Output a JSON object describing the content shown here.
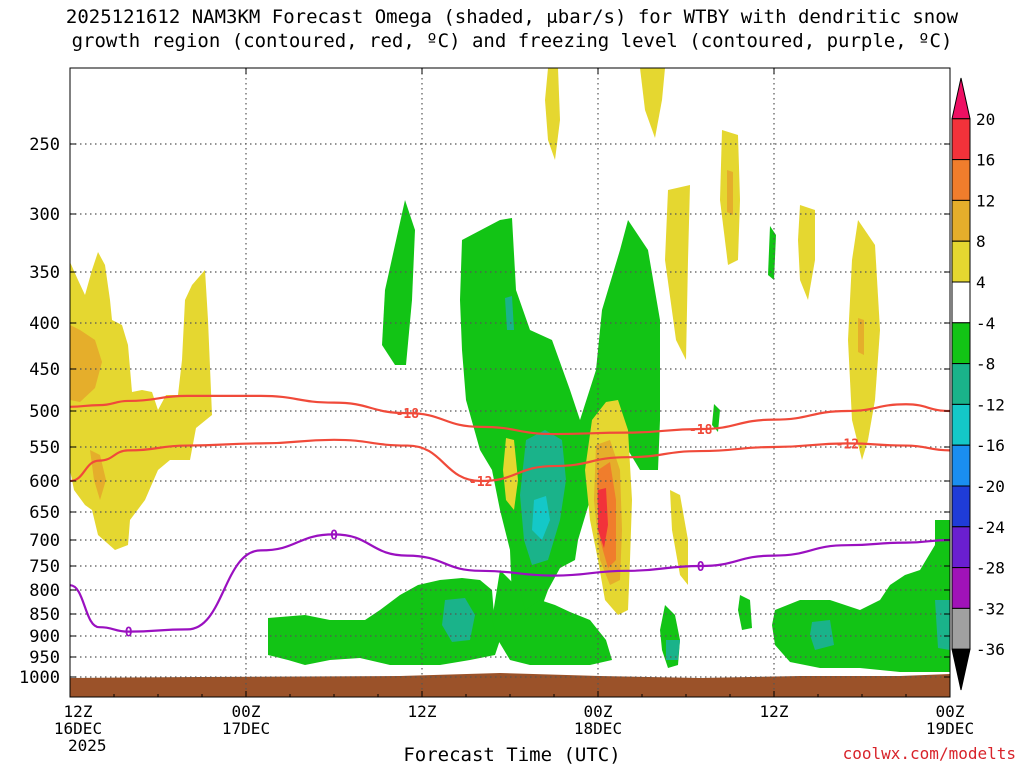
{
  "chart_data": {
    "type": "heatmap",
    "title_line1": "2025121612 NAM3KM Forecast Omega (shaded, μbar/s) for WTBY with dendritic snow",
    "title_line2": "growth region (contoured, red, ºC) and freezing level (contoured, purple, ºC)",
    "xlabel": "Forecast Time (UTC)",
    "ylabel": "",
    "credit": "coolwx.com/modelts",
    "yaxis_ticks": [
      250,
      300,
      350,
      400,
      450,
      500,
      550,
      600,
      650,
      700,
      750,
      800,
      850,
      900,
      950,
      1000
    ],
    "ylim_hpa": [
      1030,
      200
    ],
    "xaxis_ticks": [
      {
        "hour": 0,
        "line1": "12Z",
        "line2": "16DEC",
        "line3": "2025"
      },
      {
        "hour": 12,
        "line1": "00Z",
        "line2": "17DEC",
        "line3": ""
      },
      {
        "hour": 24,
        "line1": "12Z",
        "line2": "",
        "line3": ""
      },
      {
        "hour": 36,
        "line1": "00Z",
        "line2": "18DEC",
        "line3": ""
      },
      {
        "hour": 48,
        "line1": "12Z",
        "line2": "",
        "line3": ""
      },
      {
        "hour": 60,
        "line1": "00Z",
        "line2": "19DEC",
        "line3": ""
      }
    ],
    "xlim_hours": [
      0,
      60
    ],
    "colorbar": {
      "labels": [
        "20",
        "16",
        "12",
        "8",
        "4",
        "-4",
        "-8",
        "-12",
        "-16",
        "-20",
        "-24",
        "-28",
        "-32",
        "-36"
      ],
      "colors": [
        "#ee1063",
        "#f2323a",
        "#f07d2c",
        "#e5ae2b",
        "#e5d730",
        "#ffffff",
        "#12c415",
        "#1ab38a",
        "#14c8c8",
        "#1a8ef0",
        "#1f3cd8",
        "#6a1fd0",
        "#a012b8",
        "#a0a0a0",
        "#000000"
      ]
    },
    "contours": {
      "dgz_minus12": {
        "label": "-12",
        "color": "#f04a3a",
        "pressure_hpa": [
          600,
          570,
          555,
          548,
          545,
          540,
          548,
          600,
          578,
          565,
          556,
          550,
          545,
          548,
          555
        ]
      },
      "dgz_minus18": {
        "label": "-18",
        "color": "#f04a3a",
        "pressure_hpa": [
          495,
          493,
          488,
          482,
          482,
          490,
          503,
          522,
          532,
          530,
          525,
          512,
          500,
          492,
          500
        ]
      },
      "freezing_level": {
        "label": "0",
        "color": "#9a10c0",
        "pressure_hpa": [
          790,
          880,
          890,
          885,
          720,
          690,
          730,
          760,
          770,
          760,
          750,
          730,
          710,
          705,
          700
        ]
      }
    },
    "contour_x_hours": [
      0,
      2,
      4,
      8,
      13,
      18,
      23,
      28,
      33,
      38,
      43,
      48,
      53,
      57,
      60
    ]
  }
}
